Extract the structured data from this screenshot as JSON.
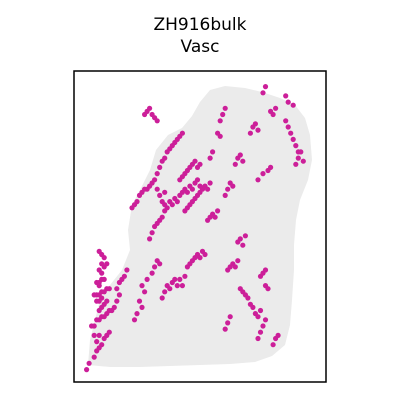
{
  "chart_data": {
    "type": "scatter",
    "title_lines": [
      "ZH916bulk",
      "Vasc"
    ],
    "xlabel": "",
    "ylabel": "",
    "xlim": [
      0,
      100
    ],
    "ylim": [
      0,
      100
    ],
    "grid": false,
    "legend": "none",
    "colors": {
      "background_spots": "#ebebeb",
      "highlight_spots": "#cc1f99",
      "frame": "#000000"
    },
    "series": [
      {
        "role": "tissue background spots",
        "values_description": "",
        "x": [],
        "y": []
      },
      {
        "role": "highlighted spots",
        "points": [
          [
            5,
            4
          ],
          [
            6,
            6
          ],
          [
            8,
            8
          ],
          [
            9,
            10
          ],
          [
            10,
            11
          ],
          [
            11,
            12
          ],
          [
            9,
            13
          ],
          [
            8,
            15
          ],
          [
            10,
            15
          ],
          [
            12,
            14
          ],
          [
            13,
            15
          ],
          [
            14,
            16
          ],
          [
            7,
            18
          ],
          [
            8,
            18
          ],
          [
            9,
            20
          ],
          [
            10,
            20
          ],
          [
            11,
            21
          ],
          [
            12,
            21
          ],
          [
            13,
            22
          ],
          [
            14,
            23
          ],
          [
            15,
            23
          ],
          [
            10,
            23
          ],
          [
            11,
            24
          ],
          [
            12,
            25
          ],
          [
            13,
            26
          ],
          [
            9,
            26
          ],
          [
            10,
            26
          ],
          [
            11,
            27
          ],
          [
            8,
            28
          ],
          [
            9,
            28
          ],
          [
            10,
            28
          ],
          [
            11,
            29
          ],
          [
            12,
            29
          ],
          [
            13,
            30
          ],
          [
            14,
            30
          ],
          [
            10,
            31
          ],
          [
            9,
            32
          ],
          [
            10,
            32
          ],
          [
            11,
            33
          ],
          [
            12,
            33
          ],
          [
            11,
            35
          ],
          [
            10,
            36
          ],
          [
            12,
            37
          ],
          [
            11,
            38
          ],
          [
            13,
            38
          ],
          [
            12,
            40
          ],
          [
            11,
            41
          ],
          [
            10,
            42
          ],
          [
            16,
            24
          ],
          [
            17,
            26
          ],
          [
            18,
            28
          ],
          [
            17,
            30
          ],
          [
            18,
            32
          ],
          [
            19,
            33
          ],
          [
            20,
            34
          ],
          [
            21,
            36
          ],
          [
            24,
            20
          ],
          [
            25,
            22
          ],
          [
            27,
            24
          ],
          [
            26,
            26
          ],
          [
            28,
            29
          ],
          [
            27,
            31
          ],
          [
            29,
            33
          ],
          [
            31,
            35
          ],
          [
            32,
            37
          ],
          [
            33,
            39
          ],
          [
            34,
            38
          ],
          [
            35,
            27
          ],
          [
            36,
            29
          ],
          [
            37,
            31
          ],
          [
            38,
            30
          ],
          [
            39,
            32
          ],
          [
            40,
            33
          ],
          [
            41,
            31
          ],
          [
            42,
            33
          ],
          [
            43,
            31
          ],
          [
            44,
            34
          ],
          [
            30,
            46
          ],
          [
            31,
            48
          ],
          [
            32,
            50
          ],
          [
            33,
            51
          ],
          [
            34,
            52
          ],
          [
            35,
            53
          ],
          [
            36,
            55
          ],
          [
            37,
            56
          ],
          [
            36,
            57
          ],
          [
            38,
            58
          ],
          [
            39,
            57
          ],
          [
            40,
            59
          ],
          [
            41,
            58
          ],
          [
            42,
            60
          ],
          [
            43,
            61
          ],
          [
            44,
            62
          ],
          [
            45,
            61
          ],
          [
            46,
            63
          ],
          [
            47,
            62
          ],
          [
            48,
            64
          ],
          [
            49,
            65
          ],
          [
            50,
            63
          ],
          [
            44,
            55
          ],
          [
            45,
            56
          ],
          [
            46,
            57
          ],
          [
            47,
            58
          ],
          [
            48,
            59
          ],
          [
            49,
            60
          ],
          [
            50,
            61
          ],
          [
            51,
            62
          ],
          [
            52,
            63
          ],
          [
            53,
            62
          ],
          [
            54,
            64
          ],
          [
            42,
            65
          ],
          [
            43,
            66
          ],
          [
            44,
            67
          ],
          [
            45,
            68
          ],
          [
            46,
            69
          ],
          [
            47,
            70
          ],
          [
            48,
            71
          ],
          [
            49,
            69
          ],
          [
            50,
            70
          ],
          [
            29,
            62
          ],
          [
            30,
            63
          ],
          [
            31,
            64
          ],
          [
            32,
            65
          ],
          [
            33,
            62
          ],
          [
            34,
            60
          ],
          [
            35,
            58
          ],
          [
            36,
            61
          ],
          [
            23,
            56
          ],
          [
            24,
            57
          ],
          [
            25,
            58
          ],
          [
            26,
            60
          ],
          [
            27,
            61
          ],
          [
            28,
            62
          ],
          [
            37,
            74
          ],
          [
            38,
            75
          ],
          [
            39,
            76
          ],
          [
            40,
            77
          ],
          [
            41,
            78
          ],
          [
            42,
            79
          ],
          [
            43,
            80
          ],
          [
            33,
            67
          ],
          [
            34,
            69
          ],
          [
            35,
            71
          ],
          [
            36,
            72
          ],
          [
            28,
            86
          ],
          [
            29,
            87
          ],
          [
            30,
            88
          ],
          [
            31,
            86
          ],
          [
            32,
            85
          ],
          [
            33,
            84
          ],
          [
            45,
            37
          ],
          [
            46,
            38
          ],
          [
            47,
            39
          ],
          [
            48,
            40
          ],
          [
            49,
            41
          ],
          [
            50,
            40
          ],
          [
            51,
            42
          ],
          [
            52,
            41
          ],
          [
            53,
            52
          ],
          [
            54,
            53
          ],
          [
            55,
            54
          ],
          [
            56,
            53
          ],
          [
            57,
            55
          ],
          [
            61,
            36
          ],
          [
            62,
            37
          ],
          [
            63,
            38
          ],
          [
            64,
            37
          ],
          [
            65,
            39
          ],
          [
            66,
            30
          ],
          [
            67,
            29
          ],
          [
            68,
            28
          ],
          [
            69,
            27
          ],
          [
            70,
            25
          ],
          [
            71,
            24
          ],
          [
            72,
            22
          ],
          [
            73,
            21
          ],
          [
            74,
            23
          ],
          [
            74,
            34
          ],
          [
            75,
            35
          ],
          [
            76,
            36
          ],
          [
            76,
            31
          ],
          [
            77,
            30
          ],
          [
            65,
            45
          ],
          [
            66,
            46
          ],
          [
            67,
            44
          ],
          [
            68,
            47
          ],
          [
            54,
            72
          ],
          [
            55,
            74
          ],
          [
            57,
            80
          ],
          [
            58,
            79
          ],
          [
            60,
            60
          ],
          [
            61,
            62
          ],
          [
            62,
            64
          ],
          [
            63,
            63
          ],
          [
            64,
            70
          ],
          [
            65,
            72
          ],
          [
            66,
            73
          ],
          [
            67,
            71
          ],
          [
            70,
            80
          ],
          [
            71,
            82
          ],
          [
            72,
            83
          ],
          [
            73,
            81
          ],
          [
            75,
            93
          ],
          [
            76,
            95
          ],
          [
            78,
            87
          ],
          [
            79,
            86
          ],
          [
            80,
            88
          ],
          [
            84,
            84
          ],
          [
            85,
            82
          ],
          [
            86,
            80
          ],
          [
            87,
            78
          ],
          [
            88,
            76
          ],
          [
            89,
            74
          ],
          [
            88,
            70
          ],
          [
            89,
            72
          ],
          [
            90,
            74
          ],
          [
            91,
            71
          ],
          [
            73,
            65
          ],
          [
            75,
            67
          ],
          [
            77,
            68
          ],
          [
            78,
            69
          ],
          [
            84,
            92
          ],
          [
            85,
            90
          ],
          [
            87,
            89
          ],
          [
            73,
            14
          ],
          [
            74,
            16
          ],
          [
            75,
            18
          ],
          [
            76,
            20
          ],
          [
            79,
            12
          ],
          [
            80,
            14
          ],
          [
            81,
            15
          ],
          [
            58,
            84
          ],
          [
            59,
            86
          ],
          [
            60,
            88
          ],
          [
            60,
            17
          ],
          [
            61,
            19
          ],
          [
            62,
            21
          ]
        ]
      }
    ]
  }
}
